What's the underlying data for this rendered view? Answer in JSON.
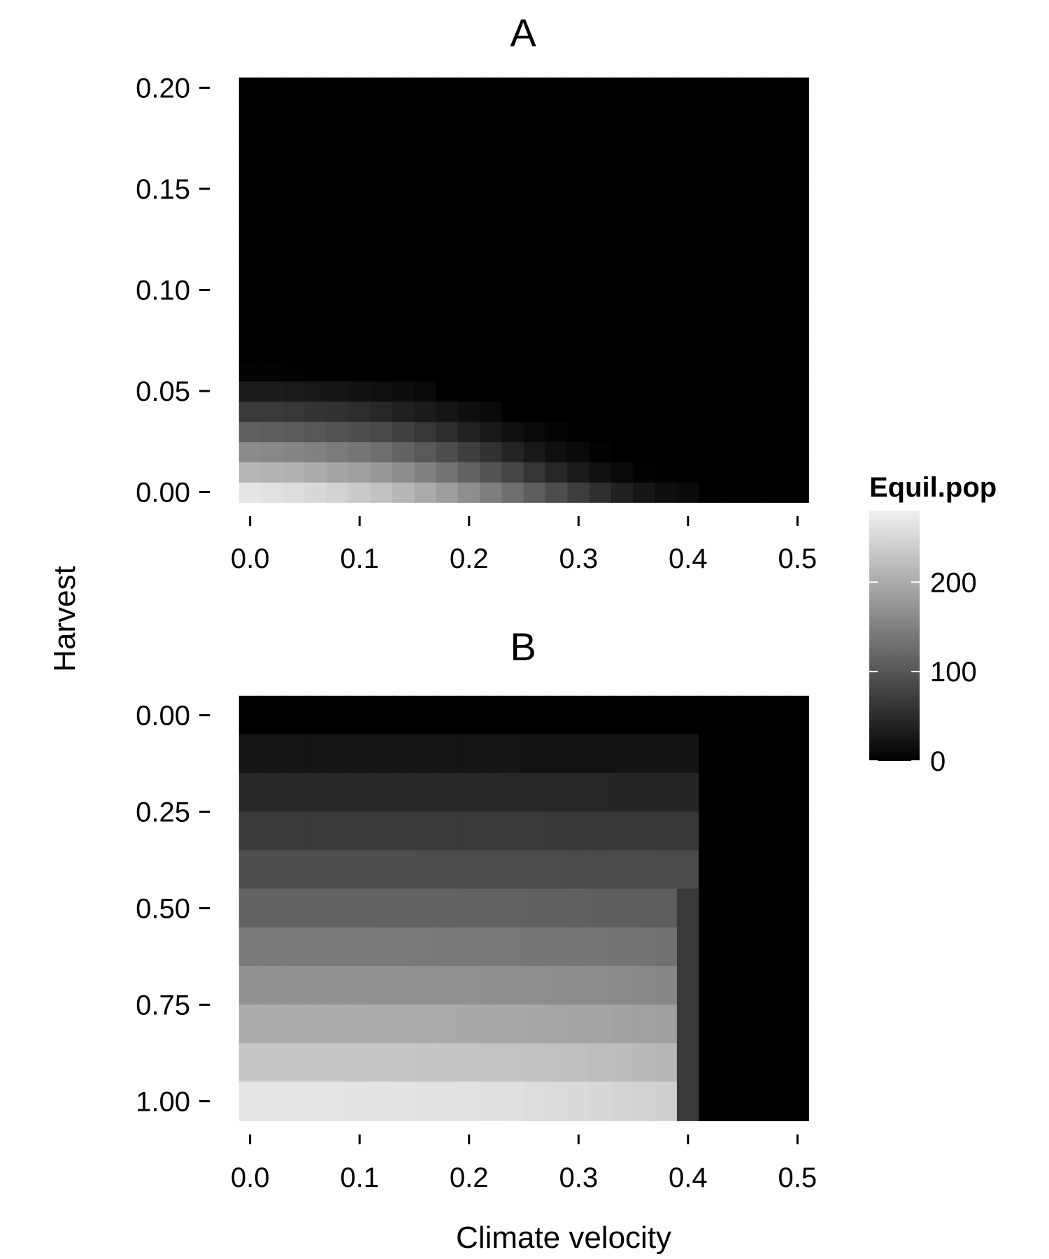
{
  "colors": {
    "low": "#000000",
    "high": "#f0f0f0",
    "background": "#ffffff",
    "text": "#000000"
  },
  "shared": {
    "xlabel": "Climate velocity",
    "ylabel": "Harvest"
  },
  "legend": {
    "title": "Equil.pop",
    "ticks": [
      0,
      100,
      200
    ],
    "range": [
      0,
      280
    ],
    "placement": "right"
  },
  "chart_data": [
    {
      "type": "heatmap",
      "title": "A",
      "xlabel": "Climate velocity",
      "ylabel": "Harvest",
      "xlim": [
        -0.01,
        0.51
      ],
      "ylim": [
        -0.005,
        0.205
      ],
      "x_ticks": [
        "0.0",
        "0.1",
        "0.2",
        "0.3",
        "0.4",
        "0.5"
      ],
      "y_ticks": [
        "0.00",
        "0.05",
        "0.10",
        "0.15",
        "0.20"
      ],
      "x_cells": {
        "start": 0,
        "step": 0.02,
        "count": 26
      },
      "y_cells": {
        "start": 0,
        "step": 0.01,
        "count": 21
      },
      "value_range": [
        0,
        280
      ],
      "value_rows": [
        [
          267,
          262,
          258,
          252,
          245,
          236,
          226,
          214,
          200,
          184,
          166,
          147,
          128,
          108,
          90,
          72,
          55,
          38,
          26,
          16,
          12,
          0,
          0,
          0,
          0,
          0
        ],
        [
          214,
          210,
          206,
          200,
          193,
          186,
          176,
          164,
          150,
          134,
          116,
          98,
          80,
          62,
          46,
          32,
          20,
          10,
          4,
          0,
          0,
          0,
          0,
          0,
          0,
          0
        ],
        [
          162,
          159,
          155,
          150,
          144,
          137,
          128,
          116,
          104,
          90,
          74,
          58,
          42,
          28,
          18,
          10,
          4,
          0,
          0,
          0,
          0,
          0,
          0,
          0,
          0,
          0
        ],
        [
          112,
          110,
          106,
          102,
          97,
          91,
          84,
          75,
          64,
          52,
          40,
          28,
          18,
          10,
          6,
          0,
          0,
          0,
          0,
          0,
          0,
          0,
          0,
          0,
          0,
          0
        ],
        [
          68,
          66,
          64,
          61,
          57,
          52,
          46,
          39,
          32,
          24,
          16,
          10,
          0,
          0,
          0,
          0,
          0,
          0,
          0,
          0,
          0,
          0,
          0,
          0,
          0,
          0
        ],
        [
          32,
          31,
          29,
          27,
          24,
          21,
          18,
          14,
          10,
          0,
          0,
          0,
          0,
          0,
          0,
          0,
          0,
          0,
          0,
          0,
          0,
          0,
          0,
          0,
          0,
          0
        ],
        [
          4,
          3,
          2,
          0,
          0,
          0,
          0,
          0,
          0,
          0,
          0,
          0,
          0,
          0,
          0,
          0,
          0,
          0,
          0,
          0,
          0,
          0,
          0,
          0,
          0,
          0
        ],
        [
          0,
          0,
          0,
          0,
          0,
          0,
          0,
          0,
          0,
          0,
          0,
          0,
          0,
          0,
          0,
          0,
          0,
          0,
          0,
          0,
          0,
          0,
          0,
          0,
          0,
          0
        ],
        [
          0,
          0,
          0,
          0,
          0,
          0,
          0,
          0,
          0,
          0,
          0,
          0,
          0,
          0,
          0,
          0,
          0,
          0,
          0,
          0,
          0,
          0,
          0,
          0,
          0,
          0
        ],
        [
          0,
          0,
          0,
          0,
          0,
          0,
          0,
          0,
          0,
          0,
          0,
          0,
          0,
          0,
          0,
          0,
          0,
          0,
          0,
          0,
          0,
          0,
          0,
          0,
          0,
          0
        ],
        [
          0,
          0,
          0,
          0,
          0,
          0,
          0,
          0,
          0,
          0,
          0,
          0,
          0,
          0,
          0,
          0,
          0,
          0,
          0,
          0,
          0,
          0,
          0,
          0,
          0,
          0
        ],
        [
          0,
          0,
          0,
          0,
          0,
          0,
          0,
          0,
          0,
          0,
          0,
          0,
          0,
          0,
          0,
          0,
          0,
          0,
          0,
          0,
          0,
          0,
          0,
          0,
          0,
          0
        ],
        [
          0,
          0,
          0,
          0,
          0,
          0,
          0,
          0,
          0,
          0,
          0,
          0,
          0,
          0,
          0,
          0,
          0,
          0,
          0,
          0,
          0,
          0,
          0,
          0,
          0,
          0
        ],
        [
          0,
          0,
          0,
          0,
          0,
          0,
          0,
          0,
          0,
          0,
          0,
          0,
          0,
          0,
          0,
          0,
          0,
          0,
          0,
          0,
          0,
          0,
          0,
          0,
          0,
          0
        ],
        [
          0,
          0,
          0,
          0,
          0,
          0,
          0,
          0,
          0,
          0,
          0,
          0,
          0,
          0,
          0,
          0,
          0,
          0,
          0,
          0,
          0,
          0,
          0,
          0,
          0,
          0
        ],
        [
          0,
          0,
          0,
          0,
          0,
          0,
          0,
          0,
          0,
          0,
          0,
          0,
          0,
          0,
          0,
          0,
          0,
          0,
          0,
          0,
          0,
          0,
          0,
          0,
          0,
          0
        ],
        [
          0,
          0,
          0,
          0,
          0,
          0,
          0,
          0,
          0,
          0,
          0,
          0,
          0,
          0,
          0,
          0,
          0,
          0,
          0,
          0,
          0,
          0,
          0,
          0,
          0,
          0
        ],
        [
          0,
          0,
          0,
          0,
          0,
          0,
          0,
          0,
          0,
          0,
          0,
          0,
          0,
          0,
          0,
          0,
          0,
          0,
          0,
          0,
          0,
          0,
          0,
          0,
          0,
          0
        ],
        [
          0,
          0,
          0,
          0,
          0,
          0,
          0,
          0,
          0,
          0,
          0,
          0,
          0,
          0,
          0,
          0,
          0,
          0,
          0,
          0,
          0,
          0,
          0,
          0,
          0,
          0
        ],
        [
          0,
          0,
          0,
          0,
          0,
          0,
          0,
          0,
          0,
          0,
          0,
          0,
          0,
          0,
          0,
          0,
          0,
          0,
          0,
          0,
          0,
          0,
          0,
          0,
          0,
          0
        ],
        [
          0,
          0,
          0,
          0,
          0,
          0,
          0,
          0,
          0,
          0,
          0,
          0,
          0,
          0,
          0,
          0,
          0,
          0,
          0,
          0,
          0,
          0,
          0,
          0,
          0,
          0
        ]
      ]
    },
    {
      "type": "heatmap",
      "title": "B",
      "xlabel": "Climate velocity",
      "ylabel": "Harvest",
      "y_reversed": true,
      "xlim": [
        -0.01,
        0.51
      ],
      "ylim": [
        -0.05,
        1.05
      ],
      "x_ticks": [
        "0.0",
        "0.1",
        "0.2",
        "0.3",
        "0.4",
        "0.5"
      ],
      "y_ticks": [
        "0.00",
        "0.25",
        "0.50",
        "0.75",
        "1.00"
      ],
      "x_cells": {
        "start": 0,
        "step": 0.02,
        "count": 26
      },
      "y_cells": {
        "start": 0,
        "step": 0.1,
        "count": 11
      },
      "value_range": [
        0,
        280
      ],
      "value_rows": [
        [
          0,
          0,
          0,
          0,
          0,
          0,
          0,
          0,
          0,
          0,
          0,
          0,
          0,
          0,
          0,
          0,
          0,
          0,
          0,
          0,
          0,
          0,
          0,
          0,
          0,
          0
        ],
        [
          24,
          24,
          24,
          24,
          24,
          24,
          24,
          24,
          24,
          24,
          24,
          24,
          24,
          23,
          23,
          23,
          23,
          23,
          23,
          23,
          23,
          0,
          0,
          0,
          0,
          0
        ],
        [
          45,
          45,
          45,
          45,
          45,
          45,
          45,
          45,
          45,
          45,
          45,
          45,
          44,
          44,
          44,
          44,
          44,
          43,
          43,
          43,
          43,
          0,
          0,
          0,
          0,
          0
        ],
        [
          67,
          67,
          67,
          67,
          67,
          67,
          67,
          67,
          67,
          66,
          66,
          66,
          66,
          66,
          65,
          65,
          65,
          64,
          64,
          64,
          64,
          0,
          0,
          0,
          0,
          0
        ],
        [
          91,
          91,
          91,
          91,
          91,
          91,
          91,
          91,
          90,
          90,
          90,
          90,
          89,
          89,
          89,
          88,
          88,
          87,
          87,
          86,
          86,
          0,
          0,
          0,
          0,
          0
        ],
        [
          116,
          116,
          116,
          116,
          116,
          116,
          115,
          115,
          115,
          115,
          114,
          114,
          114,
          113,
          113,
          112,
          111,
          110,
          109,
          108,
          67,
          0,
          0,
          0,
          0,
          0
        ],
        [
          142,
          142,
          142,
          142,
          142,
          142,
          141,
          141,
          141,
          140,
          140,
          140,
          139,
          138,
          138,
          137,
          136,
          135,
          134,
          132,
          67,
          0,
          0,
          0,
          0,
          0
        ],
        [
          170,
          170,
          170,
          170,
          170,
          170,
          169,
          169,
          168,
          168,
          168,
          167,
          166,
          166,
          165,
          164,
          163,
          162,
          160,
          158,
          67,
          0,
          0,
          0,
          0,
          0
        ],
        [
          200,
          200,
          200,
          200,
          200,
          199,
          199,
          199,
          198,
          198,
          197,
          196,
          196,
          195,
          194,
          193,
          192,
          190,
          188,
          185,
          67,
          0,
          0,
          0,
          0,
          0
        ],
        [
          232,
          232,
          232,
          232,
          232,
          232,
          231,
          231,
          230,
          230,
          229,
          228,
          227,
          226,
          225,
          223,
          221,
          219,
          216,
          213,
          67,
          0,
          0,
          0,
          0,
          0
        ],
        [
          267,
          267,
          267,
          267,
          267,
          266,
          266,
          265,
          264,
          263,
          262,
          261,
          260,
          258,
          256,
          254,
          252,
          249,
          245,
          241,
          67,
          0,
          0,
          0,
          0,
          0
        ]
      ]
    }
  ]
}
